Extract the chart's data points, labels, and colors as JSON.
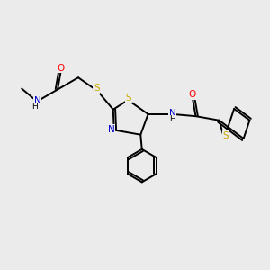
{
  "background_color": "#ebebeb",
  "bond_color": "#000000",
  "atom_colors": {
    "O": "#ff0000",
    "N": "#0000cc",
    "S": "#ccaa00",
    "C": "#000000",
    "H": "#000000"
  },
  "figsize": [
    3.0,
    3.0
  ],
  "dpi": 100
}
